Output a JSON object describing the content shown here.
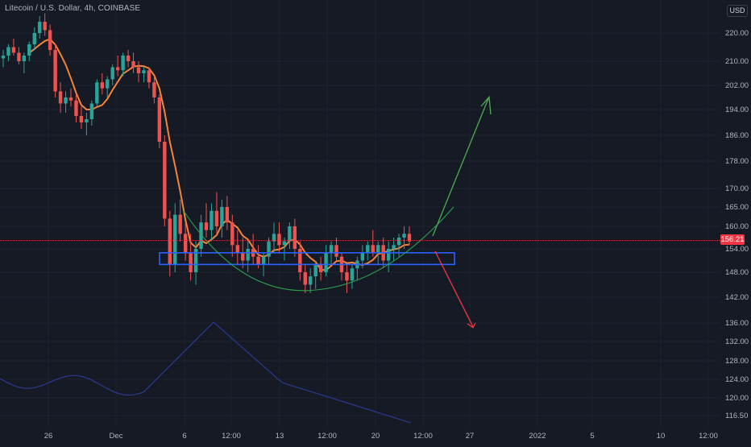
{
  "header": {
    "title": "Litecoin / U.S. Dollar, 4h, COINBASE"
  },
  "price_scale": {
    "currency_button": "USD",
    "last_price": "156.21",
    "tick_labels": [
      "220.00",
      "210.00",
      "202.00",
      "194.00",
      "186.00",
      "178.00",
      "170.00",
      "165.00",
      "160.00",
      "154.00",
      "148.00",
      "142.00",
      "136.00",
      "132.00",
      "128.00",
      "124.00",
      "120.00",
      "116.50"
    ]
  },
  "time_scale": {
    "labels": [
      "26",
      "Dec",
      "6",
      "12:00",
      "13",
      "12:00",
      "20",
      "12:00",
      "27",
      "2022",
      "5",
      "10",
      "12:00"
    ]
  },
  "colors": {
    "background": "#161a25",
    "up_candle": "#26a69a",
    "down_candle": "#ef5350",
    "moving_average": "#f2853b",
    "support_box": "#2962ff",
    "arc": "#2e9e4f",
    "bull_arrow": "#4caf50",
    "bear_arrow": "#f23645",
    "volume_line": "#2a3a8c",
    "last_price_line": "#f23645"
  },
  "chart_data": {
    "type": "candlestick",
    "symbol": "Litecoin / U.S. Dollar",
    "interval": "4h",
    "exchange": "COINBASE",
    "y_axis_ticks": [
      220,
      210,
      202,
      194,
      186,
      178,
      170,
      165,
      160,
      154,
      148,
      142,
      136,
      132,
      128,
      124,
      120,
      116.5
    ],
    "last_price": 156.21,
    "candles": [
      {
        "o": 211,
        "h": 214,
        "l": 208,
        "c": 212
      },
      {
        "o": 212,
        "h": 216,
        "l": 210,
        "c": 215
      },
      {
        "o": 215,
        "h": 218,
        "l": 212,
        "c": 213
      },
      {
        "o": 213,
        "h": 215,
        "l": 209,
        "c": 210
      },
      {
        "o": 210,
        "h": 213,
        "l": 206,
        "c": 212
      },
      {
        "o": 212,
        "h": 217,
        "l": 210,
        "c": 216
      },
      {
        "o": 216,
        "h": 222,
        "l": 214,
        "c": 220
      },
      {
        "o": 220,
        "h": 226,
        "l": 218,
        "c": 224
      },
      {
        "o": 224,
        "h": 227,
        "l": 219,
        "c": 221
      },
      {
        "o": 221,
        "h": 223,
        "l": 212,
        "c": 214
      },
      {
        "o": 214,
        "h": 216,
        "l": 198,
        "c": 200
      },
      {
        "o": 200,
        "h": 203,
        "l": 193,
        "c": 196
      },
      {
        "o": 196,
        "h": 200,
        "l": 193,
        "c": 198
      },
      {
        "o": 198,
        "h": 201,
        "l": 195,
        "c": 197
      },
      {
        "o": 197,
        "h": 199,
        "l": 190,
        "c": 192
      },
      {
        "o": 192,
        "h": 195,
        "l": 188,
        "c": 190
      },
      {
        "o": 190,
        "h": 193,
        "l": 186,
        "c": 191
      },
      {
        "o": 191,
        "h": 197,
        "l": 189,
        "c": 196
      },
      {
        "o": 196,
        "h": 204,
        "l": 195,
        "c": 203
      },
      {
        "o": 203,
        "h": 206,
        "l": 199,
        "c": 201
      },
      {
        "o": 201,
        "h": 205,
        "l": 198,
        "c": 204
      },
      {
        "o": 204,
        "h": 209,
        "l": 202,
        "c": 208
      },
      {
        "o": 208,
        "h": 212,
        "l": 205,
        "c": 207
      },
      {
        "o": 207,
        "h": 213,
        "l": 205,
        "c": 212
      },
      {
        "o": 212,
        "h": 214,
        "l": 208,
        "c": 210
      },
      {
        "o": 210,
        "h": 213,
        "l": 206,
        "c": 208
      },
      {
        "o": 208,
        "h": 210,
        "l": 203,
        "c": 206
      },
      {
        "o": 206,
        "h": 208,
        "l": 203,
        "c": 207
      },
      {
        "o": 207,
        "h": 208,
        "l": 201,
        "c": 203
      },
      {
        "o": 203,
        "h": 205,
        "l": 196,
        "c": 198
      },
      {
        "o": 198,
        "h": 199,
        "l": 182,
        "c": 184
      },
      {
        "o": 184,
        "h": 186,
        "l": 160,
        "c": 162
      },
      {
        "o": 162,
        "h": 164,
        "l": 147,
        "c": 150
      },
      {
        "o": 150,
        "h": 166,
        "l": 148,
        "c": 163
      },
      {
        "o": 163,
        "h": 167,
        "l": 156,
        "c": 158
      },
      {
        "o": 158,
        "h": 161,
        "l": 151,
        "c": 153
      },
      {
        "o": 153,
        "h": 158,
        "l": 146,
        "c": 148
      },
      {
        "o": 148,
        "h": 156,
        "l": 145,
        "c": 154
      },
      {
        "o": 154,
        "h": 163,
        "l": 152,
        "c": 161
      },
      {
        "o": 161,
        "h": 166,
        "l": 157,
        "c": 159
      },
      {
        "o": 159,
        "h": 166,
        "l": 156,
        "c": 164
      },
      {
        "o": 164,
        "h": 169,
        "l": 158,
        "c": 160
      },
      {
        "o": 160,
        "h": 167,
        "l": 157,
        "c": 165
      },
      {
        "o": 165,
        "h": 168,
        "l": 159,
        "c": 161
      },
      {
        "o": 161,
        "h": 163,
        "l": 152,
        "c": 155
      },
      {
        "o": 155,
        "h": 159,
        "l": 150,
        "c": 153
      },
      {
        "o": 153,
        "h": 157,
        "l": 149,
        "c": 151
      },
      {
        "o": 151,
        "h": 156,
        "l": 148,
        "c": 154
      },
      {
        "o": 154,
        "h": 158,
        "l": 150,
        "c": 152
      },
      {
        "o": 152,
        "h": 155,
        "l": 149,
        "c": 150
      },
      {
        "o": 150,
        "h": 153,
        "l": 147,
        "c": 152
      },
      {
        "o": 152,
        "h": 157,
        "l": 150,
        "c": 156
      },
      {
        "o": 156,
        "h": 161,
        "l": 153,
        "c": 158
      },
      {
        "o": 158,
        "h": 161,
        "l": 153,
        "c": 155
      },
      {
        "o": 155,
        "h": 157,
        "l": 151,
        "c": 156
      },
      {
        "o": 156,
        "h": 161,
        "l": 154,
        "c": 160
      },
      {
        "o": 160,
        "h": 162,
        "l": 152,
        "c": 154
      },
      {
        "o": 154,
        "h": 156,
        "l": 146,
        "c": 148
      },
      {
        "o": 148,
        "h": 150,
        "l": 143,
        "c": 145
      },
      {
        "o": 145,
        "h": 149,
        "l": 143,
        "c": 147
      },
      {
        "o": 147,
        "h": 151,
        "l": 144,
        "c": 150
      },
      {
        "o": 150,
        "h": 152,
        "l": 146,
        "c": 148
      },
      {
        "o": 148,
        "h": 155,
        "l": 147,
        "c": 153
      },
      {
        "o": 153,
        "h": 156,
        "l": 150,
        "c": 155
      },
      {
        "o": 155,
        "h": 157,
        "l": 151,
        "c": 152
      },
      {
        "o": 152,
        "h": 153,
        "l": 146,
        "c": 148
      },
      {
        "o": 148,
        "h": 150,
        "l": 143,
        "c": 146
      },
      {
        "o": 146,
        "h": 150,
        "l": 144,
        "c": 149
      },
      {
        "o": 149,
        "h": 152,
        "l": 146,
        "c": 151
      },
      {
        "o": 151,
        "h": 155,
        "l": 149,
        "c": 153
      },
      {
        "o": 153,
        "h": 156,
        "l": 151,
        "c": 155
      },
      {
        "o": 155,
        "h": 159,
        "l": 152,
        "c": 153
      },
      {
        "o": 153,
        "h": 156,
        "l": 150,
        "c": 155
      },
      {
        "o": 155,
        "h": 157,
        "l": 149,
        "c": 151
      },
      {
        "o": 151,
        "h": 156,
        "l": 148,
        "c": 154
      },
      {
        "o": 154,
        "h": 157,
        "l": 151,
        "c": 155
      },
      {
        "o": 155,
        "h": 158,
        "l": 152,
        "c": 157
      },
      {
        "o": 157,
        "h": 160,
        "l": 154,
        "c": 158
      },
      {
        "o": 158,
        "h": 160,
        "l": 155,
        "c": 156
      }
    ],
    "support_zone": {
      "top": 153,
      "bottom": 150
    },
    "scenarios": [
      {
        "direction": "up",
        "target": 196
      },
      {
        "direction": "down",
        "target": 137
      }
    ]
  }
}
